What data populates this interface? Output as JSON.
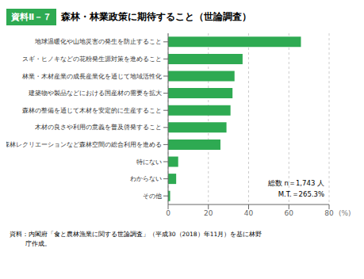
{
  "chart_data": {
    "type": "bar",
    "orientation": "horizontal",
    "title_label": "資料Ⅱ－７",
    "title": "森林・林業政策に期待すること（世論調査）",
    "categories": [
      "地球温暖化や山地災害の発生を防止すること",
      "スギ・ヒノキなどの花粉発生源対策を進めること",
      "林業・木材産業の成長産業化を通じて地域活性化",
      "建築物や製品などにおける国産材の需要を拡大",
      "森林の整備を通じて木材を安定的に生産すること",
      "木材の良さや利用の意義を普及啓発すること",
      "森林レクリエーションなど森林空間の総合利用を進める",
      "特にない",
      "わからない",
      "その他"
    ],
    "values": [
      66.0,
      37.0,
      33.0,
      32.0,
      31.0,
      29.0,
      26.0,
      5.0,
      4.0,
      1.0
    ],
    "color": "#2eaa52",
    "xlabel": "(%)",
    "xlim": [
      0,
      80
    ],
    "xticks": [
      0,
      20,
      40,
      60,
      80
    ],
    "grid": true,
    "annotations": [
      "総数 n＝1,743 人",
      "M.T.＝265.3%"
    ],
    "source": [
      "資料：内閣府「食と農林漁業に関する世論調査」（平成30（2018）年11月）を基に林野",
      "庁作成。"
    ]
  }
}
